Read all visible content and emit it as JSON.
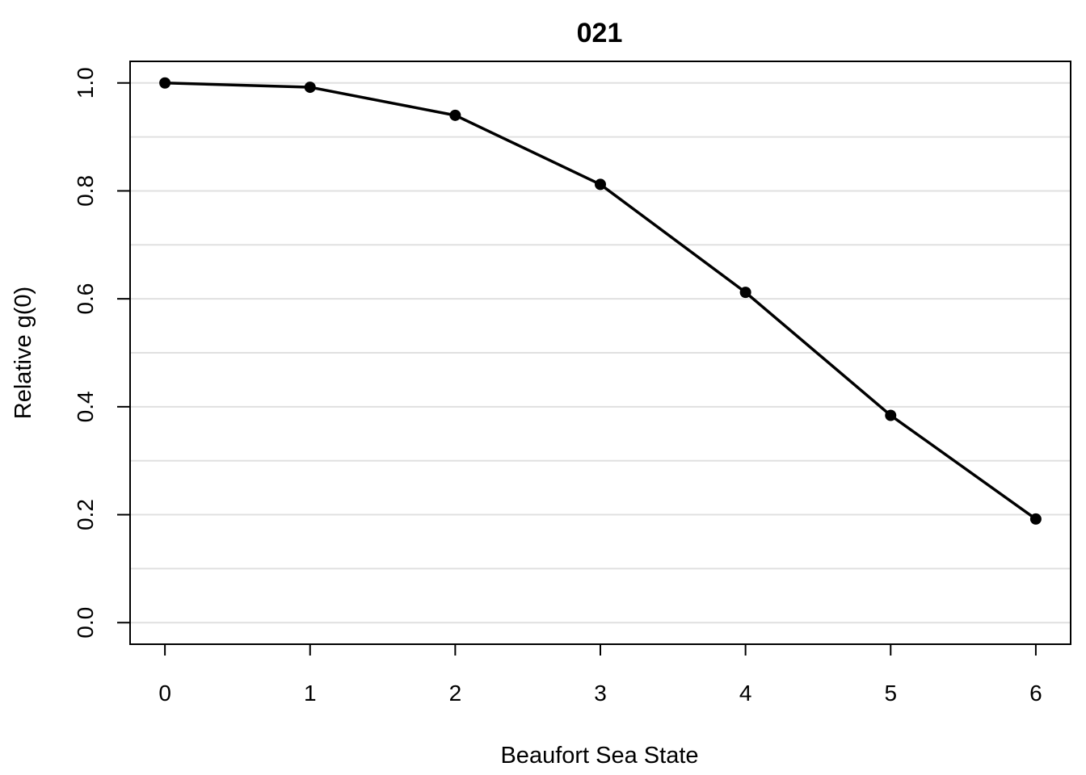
{
  "chart_data": {
    "type": "line",
    "title": "021",
    "xlabel": "Beaufort Sea State",
    "ylabel": "Relative g(0)",
    "x": [
      0,
      1,
      2,
      3,
      4,
      5,
      6
    ],
    "series": [
      {
        "values": [
          1.0,
          0.992,
          0.94,
          0.812,
          0.612,
          0.384,
          0.192
        ]
      }
    ],
    "xlim": [
      -0.24,
      6.24
    ],
    "ylim": [
      -0.04,
      1.04
    ],
    "x_ticks": [
      "0",
      "1",
      "2",
      "3",
      "4",
      "5",
      "6"
    ],
    "y_ticks": [
      "0.0",
      "0.2",
      "0.4",
      "0.6",
      "0.8",
      "1.0"
    ],
    "y_tick_values": [
      0,
      0.2,
      0.4,
      0.6,
      0.8,
      1.0
    ],
    "grid_values": [
      0,
      0.1,
      0.2,
      0.3,
      0.4,
      0.5,
      0.6,
      0.7,
      0.8,
      0.9,
      1.0
    ],
    "grid": true,
    "line_color": "#000000",
    "grid_color": "#e0e0e0"
  }
}
